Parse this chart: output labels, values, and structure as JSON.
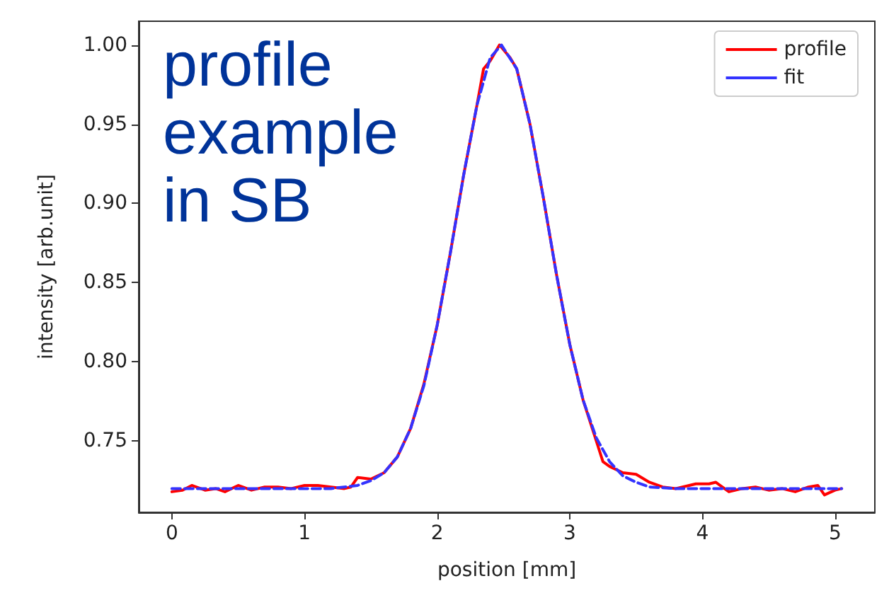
{
  "chart_data": {
    "type": "line",
    "xlabel": "position [mm]",
    "ylabel": "intensity [arb.unit]",
    "annotations": [
      "profile example in SB"
    ],
    "xlim": [
      -0.25,
      5.3
    ],
    "ylim": [
      0.705,
      1.015
    ],
    "xticks": [
      0,
      1,
      2,
      3,
      4,
      5
    ],
    "yticks": [
      {
        "value": 0.75,
        "label": "0.75"
      },
      {
        "value": 0.8,
        "label": "0.80"
      },
      {
        "value": 0.85,
        "label": "0.85"
      },
      {
        "value": 0.9,
        "label": "0.90"
      },
      {
        "value": 0.95,
        "label": "0.95"
      },
      {
        "value": 1.0,
        "label": "1.00"
      }
    ],
    "grid": false,
    "legend": "top right",
    "marker": "none",
    "series": [
      {
        "name": "profile",
        "color": "#ff0000",
        "line_style": "solid",
        "x": [
          0,
          0.08,
          0.15,
          0.25,
          0.33,
          0.4,
          0.5,
          0.6,
          0.7,
          0.8,
          0.9,
          1.0,
          1.1,
          1.2,
          1.3,
          1.35,
          1.4,
          1.5,
          1.6,
          1.7,
          1.8,
          1.9,
          2.0,
          2.1,
          2.2,
          2.3,
          2.35,
          2.4,
          2.47,
          2.55,
          2.6,
          2.7,
          2.8,
          2.9,
          3.0,
          3.1,
          3.2,
          3.25,
          3.3,
          3.4,
          3.5,
          3.6,
          3.7,
          3.8,
          3.9,
          3.95,
          4.05,
          4.1,
          4.2,
          4.3,
          4.4,
          4.5,
          4.6,
          4.7,
          4.8,
          4.87,
          4.92,
          5.0,
          5.05
        ],
        "values": [
          0.718,
          0.719,
          0.722,
          0.719,
          0.72,
          0.718,
          0.722,
          0.719,
          0.721,
          0.721,
          0.72,
          0.722,
          0.722,
          0.721,
          0.72,
          0.721,
          0.727,
          0.726,
          0.73,
          0.74,
          0.758,
          0.786,
          0.823,
          0.869,
          0.918,
          0.962,
          0.985,
          0.99,
          1.0,
          0.992,
          0.985,
          0.95,
          0.904,
          0.855,
          0.811,
          0.776,
          0.75,
          0.737,
          0.734,
          0.73,
          0.729,
          0.724,
          0.721,
          0.72,
          0.722,
          0.723,
          0.723,
          0.724,
          0.718,
          0.72,
          0.721,
          0.719,
          0.72,
          0.718,
          0.721,
          0.722,
          0.716,
          0.719,
          0.72
        ]
      },
      {
        "name": "fit",
        "color": "#3333ff",
        "line_style": "dashed",
        "x": [
          0,
          0.5,
          1.0,
          1.2,
          1.4,
          1.5,
          1.6,
          1.7,
          1.8,
          1.9,
          2.0,
          2.1,
          2.2,
          2.3,
          2.4,
          2.485,
          2.6,
          2.7,
          2.8,
          2.9,
          3.0,
          3.1,
          3.2,
          3.3,
          3.4,
          3.5,
          3.6,
          3.8,
          4.2,
          4.6,
          5.05
        ],
        "values": [
          0.72,
          0.72,
          0.72,
          0.72,
          0.722,
          0.725,
          0.73,
          0.74,
          0.758,
          0.785,
          0.823,
          0.869,
          0.918,
          0.962,
          0.992,
          1.0,
          0.985,
          0.95,
          0.904,
          0.855,
          0.811,
          0.776,
          0.752,
          0.737,
          0.728,
          0.724,
          0.721,
          0.72,
          0.72,
          0.72,
          0.72
        ]
      }
    ]
  }
}
